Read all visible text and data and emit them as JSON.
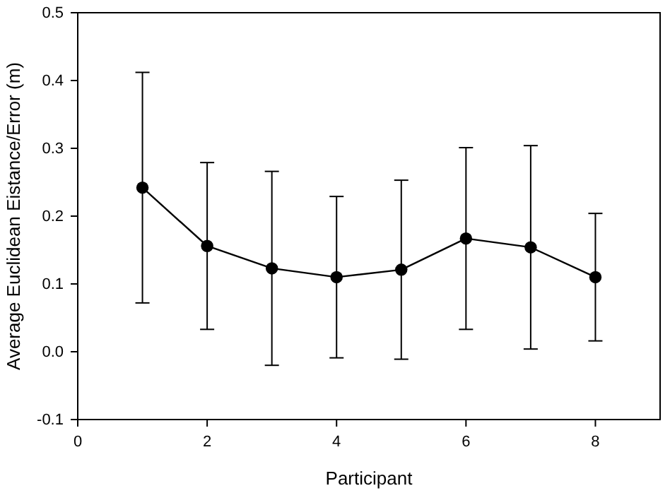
{
  "chart_data": {
    "type": "line",
    "xlabel": "Participant",
    "ylabel": "Average Euclidean Eistance/Error (m)",
    "x": [
      1,
      2,
      3,
      4,
      5,
      6,
      7,
      8
    ],
    "series": [
      {
        "color": "#000000",
        "values": [
          0.242,
          0.156,
          0.123,
          0.11,
          0.121,
          0.167,
          0.154,
          0.11
        ],
        "errors": [
          0.17,
          0.123,
          0.143,
          0.119,
          0.132,
          0.134,
          0.15,
          0.094
        ]
      }
    ],
    "xlim": [
      0,
      9
    ],
    "xticks": [
      0,
      2,
      4,
      6,
      8
    ],
    "ylim": [
      -0.1,
      0.5
    ],
    "yticks": [
      {
        "value": -0.1,
        "label": "-0.1"
      },
      {
        "value": 0,
        "label": "0.0"
      },
      {
        "value": 0.1,
        "label": "0.1"
      },
      {
        "value": 0.2,
        "label": "0.2"
      },
      {
        "value": 0.3,
        "label": "0.3"
      },
      {
        "value": 0.4,
        "label": "0.4"
      },
      {
        "value": 0.5,
        "label": "0.5"
      }
    ],
    "grid": false,
    "marker": "circle",
    "line_style": "solid"
  }
}
